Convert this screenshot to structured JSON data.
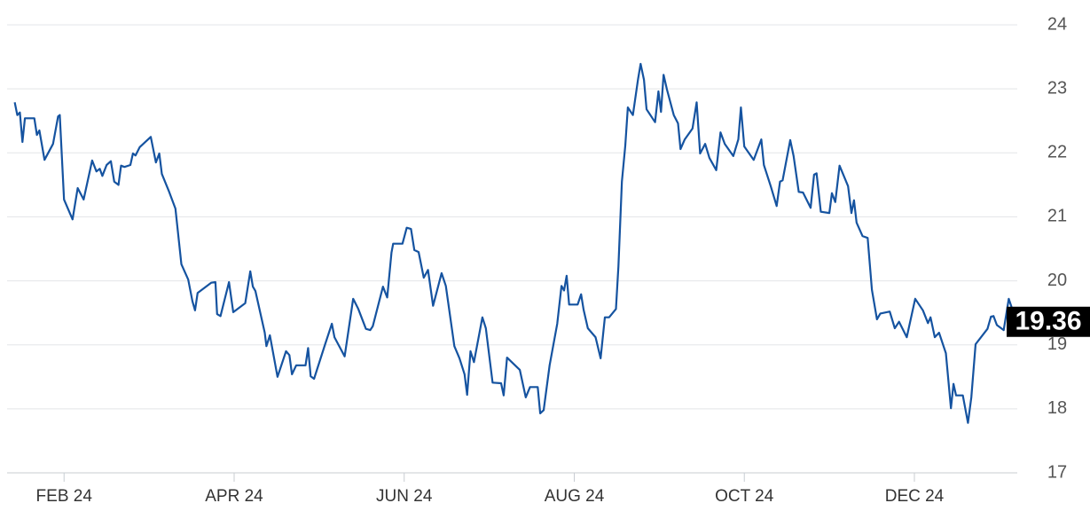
{
  "chart_data": {
    "type": "line",
    "color": "#1553a0",
    "grid": true,
    "xlim": [
      1.33,
      13.21
    ],
    "ylim": [
      17,
      24
    ],
    "xticks": [
      {
        "value": 2,
        "label": "FEB 24"
      },
      {
        "value": 4,
        "label": "APR 24"
      },
      {
        "value": 6,
        "label": "JUN 24"
      },
      {
        "value": 8,
        "label": "AUG 24"
      },
      {
        "value": 10,
        "label": "OCT 24"
      },
      {
        "value": 12,
        "label": "DEC 24"
      }
    ],
    "yticks": [
      17,
      18,
      19,
      20,
      21,
      22,
      23,
      24
    ],
    "x": [
      1.42,
      1.45,
      1.48,
      1.51,
      1.54,
      1.65,
      1.68,
      1.71,
      1.77,
      1.87,
      1.93,
      1.95,
      2.0,
      2.1,
      2.16,
      2.23,
      2.33,
      2.38,
      2.42,
      2.45,
      2.5,
      2.55,
      2.59,
      2.64,
      2.67,
      2.71,
      2.78,
      2.81,
      2.84,
      2.89,
      3.02,
      3.08,
      3.12,
      3.15,
      3.23,
      3.31,
      3.38,
      3.46,
      3.51,
      3.54,
      3.57,
      3.73,
      3.78,
      3.8,
      3.84,
      3.94,
      3.99,
      4.06,
      4.13,
      4.19,
      4.22,
      4.25,
      4.36,
      4.38,
      4.42,
      4.51,
      4.61,
      4.65,
      4.68,
      4.73,
      4.84,
      4.87,
      4.9,
      4.94,
      5.07,
      5.15,
      5.18,
      5.3,
      5.4,
      5.46,
      5.55,
      5.6,
      5.63,
      5.75,
      5.8,
      5.85,
      5.87,
      5.98,
      6.03,
      6.08,
      6.12,
      6.17,
      6.23,
      6.28,
      6.34,
      6.44,
      6.49,
      6.59,
      6.65,
      6.71,
      6.74,
      6.78,
      6.82,
      6.92,
      6.96,
      7.04,
      7.14,
      7.17,
      7.21,
      7.36,
      7.43,
      7.48,
      7.57,
      7.6,
      7.64,
      7.71,
      7.8,
      7.85,
      7.88,
      7.91,
      7.94,
      8.04,
      8.08,
      8.11,
      8.16,
      8.25,
      8.31,
      8.36,
      8.41,
      8.49,
      8.52,
      8.56,
      8.6,
      8.63,
      8.69,
      8.75,
      8.78,
      8.82,
      8.85,
      8.95,
      8.99,
      9.02,
      9.05,
      9.09,
      9.17,
      9.22,
      9.25,
      9.3,
      9.39,
      9.44,
      9.48,
      9.54,
      9.59,
      9.67,
      9.72,
      9.77,
      9.87,
      9.93,
      9.96,
      10.0,
      10.11,
      10.2,
      10.23,
      10.31,
      10.38,
      10.42,
      10.45,
      10.54,
      10.58,
      10.64,
      10.69,
      10.78,
      10.82,
      10.85,
      10.9,
      11.0,
      11.03,
      11.07,
      11.12,
      11.22,
      11.26,
      11.29,
      11.32,
      11.39,
      11.45,
      11.5,
      11.56,
      11.6,
      11.71,
      11.77,
      11.82,
      11.91,
      12.01,
      12.1,
      12.16,
      12.19,
      12.24,
      12.29,
      12.37,
      12.43,
      12.46,
      12.49,
      12.57,
      12.63,
      12.67,
      12.72,
      12.86,
      12.9,
      12.93,
      12.97,
      13.05,
      13.11,
      13.14,
      13.19
    ],
    "values": [
      22.79,
      22.59,
      22.63,
      22.17,
      22.54,
      22.54,
      22.28,
      22.35,
      21.89,
      22.14,
      22.57,
      22.59,
      21.27,
      20.96,
      21.45,
      21.27,
      21.88,
      21.71,
      21.75,
      21.64,
      21.81,
      21.87,
      21.55,
      21.5,
      21.8,
      21.78,
      21.81,
      21.99,
      21.96,
      22.09,
      22.25,
      21.85,
      21.99,
      21.67,
      21.41,
      21.13,
      20.26,
      20.02,
      19.68,
      19.54,
      19.81,
      19.97,
      19.98,
      19.48,
      19.45,
      19.98,
      19.51,
      19.58,
      19.65,
      20.15,
      19.91,
      19.84,
      19.19,
      18.98,
      19.15,
      18.5,
      18.9,
      18.84,
      18.54,
      18.68,
      18.68,
      18.95,
      18.51,
      18.47,
      19.01,
      19.33,
      19.12,
      18.82,
      19.72,
      19.56,
      19.25,
      19.23,
      19.29,
      19.91,
      19.74,
      20.44,
      20.58,
      20.58,
      20.83,
      20.81,
      20.48,
      20.45,
      20.05,
      20.17,
      19.61,
      20.12,
      19.92,
      18.98,
      18.79,
      18.54,
      18.22,
      18.9,
      18.73,
      19.43,
      19.26,
      18.41,
      18.4,
      18.21,
      18.8,
      18.61,
      18.18,
      18.34,
      18.34,
      17.93,
      17.98,
      18.68,
      19.33,
      19.92,
      19.85,
      20.08,
      19.63,
      19.63,
      19.79,
      19.55,
      19.26,
      19.12,
      18.79,
      19.43,
      19.43,
      19.56,
      20.23,
      21.55,
      22.11,
      22.71,
      22.59,
      23.15,
      23.39,
      23.14,
      22.68,
      22.48,
      22.96,
      22.64,
      23.22,
      22.99,
      22.59,
      22.46,
      22.06,
      22.21,
      22.38,
      22.79,
      21.99,
      22.14,
      21.92,
      21.73,
      22.32,
      22.14,
      21.95,
      22.21,
      22.71,
      22.1,
      21.89,
      22.21,
      21.81,
      21.48,
      21.17,
      21.55,
      21.57,
      22.2,
      21.95,
      21.39,
      21.38,
      21.14,
      21.66,
      21.68,
      21.08,
      21.06,
      21.37,
      21.23,
      21.8,
      21.48,
      21.06,
      21.26,
      20.91,
      20.7,
      20.67,
      19.86,
      19.4,
      19.49,
      19.52,
      19.26,
      19.36,
      19.12,
      19.72,
      19.54,
      19.34,
      19.43,
      19.12,
      19.19,
      18.87,
      18.01,
      18.39,
      18.21,
      18.21,
      17.78,
      18.18,
      19.01,
      19.25,
      19.44,
      19.45,
      19.31,
      19.23,
      19.72,
      19.6,
      19.36
    ]
  }
}
